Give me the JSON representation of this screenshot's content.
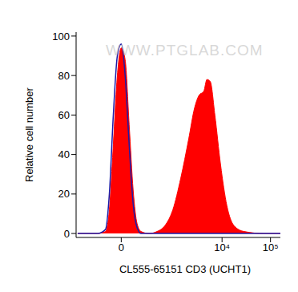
{
  "chart_data": {
    "type": "histogram",
    "x_label": "CL555-65151 CD3 (UCHT1)",
    "y_label": "Relative cell number",
    "annotations": [
      "WWW.PTGLAB.COM"
    ],
    "x": [
      -650,
      -230,
      -137,
      -99,
      -64,
      -31,
      0,
      31,
      64,
      99,
      137,
      181,
      289,
      437,
      651,
      956,
      1400,
      2050,
      2670,
      3350,
      4190,
      4880,
      5700,
      7110,
      9300,
      12600,
      17600,
      28700,
      74000,
      160000
    ],
    "series": [
      {
        "type": "area",
        "color": "#ff0000",
        "values": [
          0,
          0,
          1,
          12,
          45,
          80,
          94,
          88,
          55,
          22,
          5,
          1,
          0,
          1,
          4,
          12,
          28,
          48,
          63,
          70,
          72,
          78,
          77,
          60,
          35,
          14,
          4,
          1,
          0,
          0
        ]
      },
      {
        "type": "line",
        "color": "#1c1ca8",
        "values": [
          0,
          0,
          2,
          20,
          60,
          90,
          96,
          80,
          45,
          15,
          3,
          0,
          0,
          0,
          0,
          0,
          0,
          0,
          0,
          0,
          0,
          0,
          0,
          0,
          0,
          0,
          0,
          0,
          0,
          0
        ]
      }
    ],
    "xlim": [
      -700,
      160000
    ],
    "xticks": [
      0,
      {
        "value": 10000,
        "label": "10⁴"
      },
      {
        "value": 100000,
        "label": "10⁵"
      }
    ],
    "ylim": [
      -2,
      102
    ],
    "yticks": [
      0,
      20,
      40,
      60,
      80,
      100
    ],
    "grid": false
  }
}
